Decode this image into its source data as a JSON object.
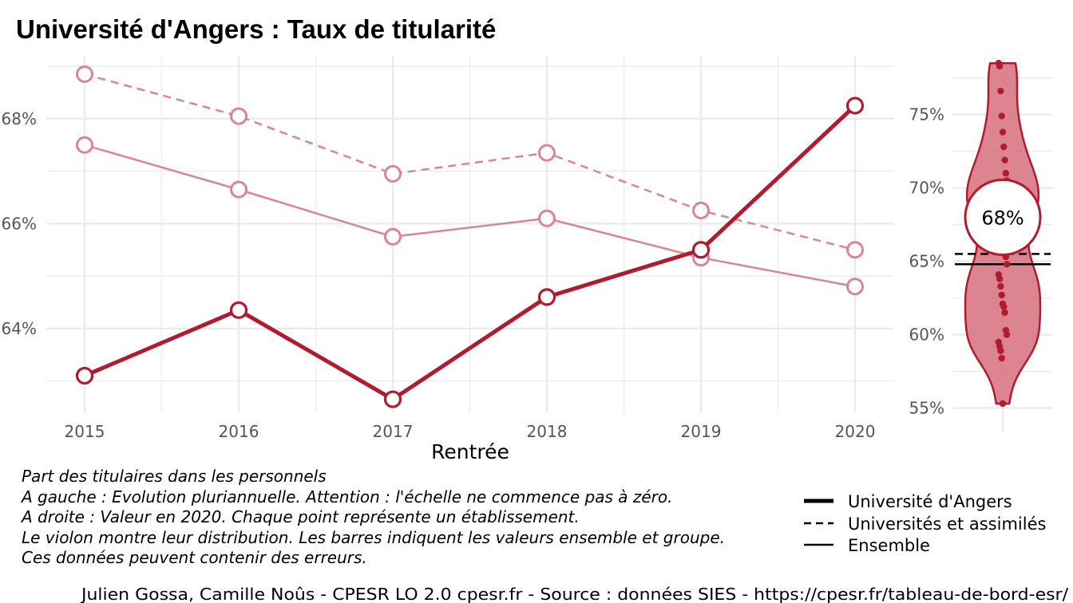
{
  "title": "Université d'Angers  :  Taux de titularité",
  "colors": {
    "main": "#b01c2e",
    "light": "#d98690",
    "violin_fill": "#d6707e",
    "grid": "#ebebeb",
    "tick": "#555555"
  },
  "chart_data": [
    {
      "type": "line",
      "xlabel": "Rentrée",
      "ylabel": "",
      "x": [
        2015,
        2016,
        2017,
        2018,
        2019,
        2020
      ],
      "x_tick_labels": [
        "2015",
        "2016",
        "2017",
        "2018",
        "2019",
        "2020"
      ],
      "y_ticks": [
        64,
        66,
        68
      ],
      "y_tick_labels": [
        "64%",
        "66%",
        "68%"
      ],
      "ylim": [
        62.4,
        69.2
      ],
      "grid": true,
      "series": [
        {
          "name": "Université d'Angers",
          "style": "solid-thick",
          "values": [
            63.1,
            64.35,
            62.65,
            64.6,
            65.5,
            68.25
          ]
        },
        {
          "name": "Universités et assimilés",
          "style": "dashed",
          "values": [
            68.85,
            68.05,
            66.95,
            67.35,
            66.25,
            65.5
          ]
        },
        {
          "name": "Ensemble",
          "style": "solid-thin",
          "values": [
            67.5,
            66.65,
            65.75,
            66.1,
            65.35,
            64.8
          ]
        }
      ]
    },
    {
      "type": "violin",
      "y_ticks": [
        55,
        60,
        65,
        70,
        75
      ],
      "y_tick_labels": [
        "55%",
        "60%",
        "65%",
        "70%",
        "75%"
      ],
      "ylim": [
        54,
        79
      ],
      "grid": true,
      "highlight_value": 68,
      "highlight_label": "68%",
      "reference_lines": {
        "Universités et assimilés": 65.5,
        "Ensemble": 64.8
      },
      "points": [
        78.5,
        78.3,
        76.6,
        74.9,
        73.8,
        72.8,
        71.9,
        71.0,
        70.5,
        70.2,
        69.8,
        69.1,
        68.6,
        68.2,
        67.9,
        66.9,
        65.3,
        64.8,
        64.1,
        63.8,
        63.3,
        62.7,
        62.1,
        61.9,
        61.5,
        60.3,
        60.0,
        59.5,
        59.2,
        58.9,
        58.4,
        55.3
      ]
    }
  ],
  "caption_lines": [
    "Part des titulaires dans les personnels",
    "A gauche : Evolution pluriannuelle. Attention : l'échelle ne commence pas à zéro.",
    "A droite : Valeur en 2020. Chaque point représente un établissement.",
    "Le violon montre leur distribution. Les barres indiquent les valeurs ensemble et groupe.",
    "Ces données peuvent contenir des erreurs."
  ],
  "legend": [
    {
      "label": "Université d'Angers",
      "style": "solid-thick"
    },
    {
      "label": "Universités et assimilés",
      "style": "dashed"
    },
    {
      "label": "Ensemble",
      "style": "solid-thin"
    }
  ],
  "footer": "Julien Gossa, Camille Noûs - CPESR LO 2.0 cpesr.fr - Source : données SIES - https://cpesr.fr/tableau-de-bord-esr/"
}
